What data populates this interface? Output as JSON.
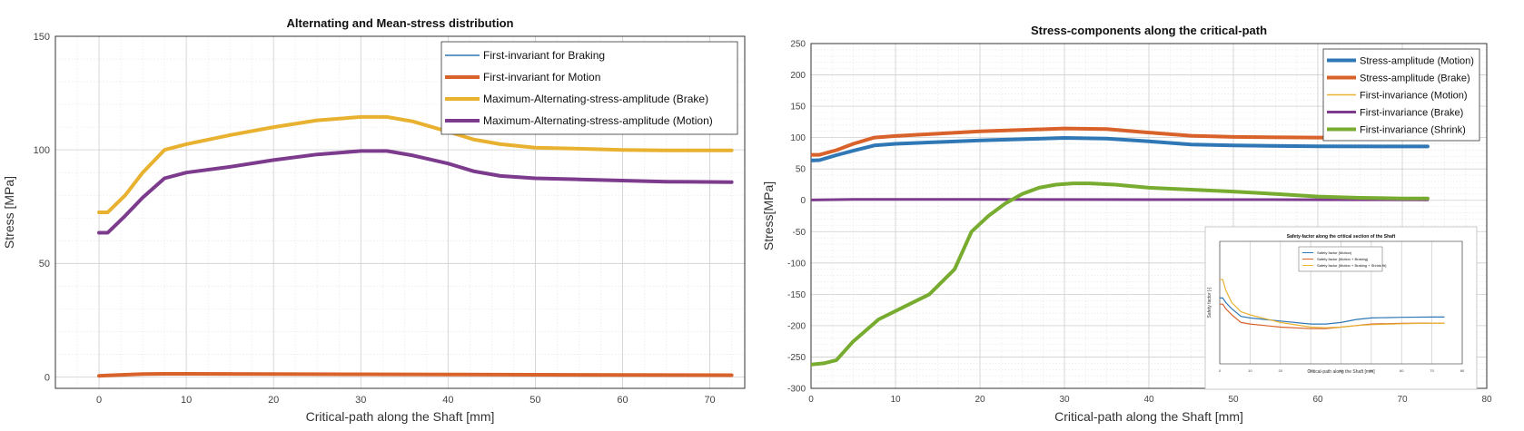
{
  "chart_data": [
    {
      "type": "line",
      "title": "Alternating and Mean-stress distribution",
      "xlabel": "Critical-path along the Shaft [mm]",
      "ylabel": "Stress [MPa]",
      "xlim": [
        -5,
        74
      ],
      "ylim": [
        -5,
        150
      ],
      "xticks": [
        0,
        10,
        20,
        30,
        40,
        50,
        60,
        70
      ],
      "yticks": [
        0,
        50,
        100,
        150
      ],
      "grid": true,
      "minor_grid": true,
      "legend_position": "top-right",
      "series": [
        {
          "name": "First-invariant for Braking",
          "color": "#2f77b5",
          "width": 1.5,
          "x": [
            0,
            1,
            3,
            5,
            7.5,
            10,
            20,
            30,
            40,
            50,
            60,
            72.5
          ],
          "y": [
            0.5,
            0.7,
            1.0,
            1.3,
            1.4,
            1.4,
            1.3,
            1.2,
            1.1,
            1.0,
            0.9,
            0.8
          ]
        },
        {
          "name": "First-invariant for Motion",
          "color": "#d9622b",
          "width": 4,
          "x": [
            0,
            1,
            3,
            5,
            7.5,
            10,
            20,
            30,
            40,
            50,
            60,
            72.5
          ],
          "y": [
            0.5,
            0.7,
            1.0,
            1.3,
            1.4,
            1.4,
            1.3,
            1.2,
            1.1,
            1.0,
            0.9,
            0.8
          ]
        },
        {
          "name": "Maximum-Alternating-stress-amplitude (Brake)",
          "color": "#e8b130",
          "width": 4,
          "x": [
            0,
            1,
            3,
            5,
            7.5,
            10,
            15,
            20,
            25,
            30,
            33,
            36,
            40,
            43,
            46,
            50,
            55,
            60,
            65,
            72.5
          ],
          "y": [
            72.5,
            72.5,
            80,
            90,
            100,
            102.5,
            106.5,
            110,
            113,
            114.5,
            114.5,
            112.5,
            108,
            104.5,
            102.5,
            101,
            100.5,
            100,
            99.8,
            99.8
          ]
        },
        {
          "name": "Maximum-Alternating-stress-amplitude (Motion)",
          "color": "#7d3b8e",
          "width": 4,
          "x": [
            0,
            1,
            3,
            5,
            7.5,
            10,
            15,
            20,
            25,
            30,
            33,
            36,
            40,
            43,
            46,
            50,
            55,
            60,
            65,
            72.5
          ],
          "y": [
            63.5,
            63.5,
            71,
            79,
            87.5,
            90,
            92.5,
            95.5,
            98,
            99.5,
            99.5,
            97.5,
            94,
            90.5,
            88.5,
            87.5,
            87,
            86.5,
            86,
            85.8
          ]
        }
      ]
    },
    {
      "type": "line",
      "title": "Stress-components along the critical-path",
      "xlabel": "Critical-path along the Shaft  [mm]",
      "ylabel": "Stress[MPa]",
      "xlim": [
        0,
        80
      ],
      "ylim": [
        -300,
        250
      ],
      "xticks": [
        0,
        10,
        20,
        30,
        40,
        50,
        60,
        70,
        80
      ],
      "yticks": [
        -300,
        -250,
        -200,
        -150,
        -100,
        -50,
        0,
        50,
        100,
        150,
        200,
        250
      ],
      "grid": true,
      "minor_grid": true,
      "legend_position": "top-right",
      "series": [
        {
          "name": "Stress-amplitude (Motion)",
          "color": "#2f77b5",
          "width": 4,
          "x": [
            0,
            1,
            3,
            5,
            7.5,
            10,
            20,
            30,
            35,
            40,
            45,
            50,
            60,
            73
          ],
          "y": [
            63.5,
            64,
            72,
            79,
            87.5,
            90,
            95.5,
            99.5,
            98.5,
            94,
            89,
            87.5,
            86,
            85.8
          ]
        },
        {
          "name": "Stress-amplitude (Brake)",
          "color": "#d9622b",
          "width": 4,
          "x": [
            0,
            1,
            3,
            5,
            7.5,
            10,
            20,
            30,
            35,
            40,
            45,
            50,
            60,
            73
          ],
          "y": [
            72.5,
            72.5,
            80,
            90,
            100,
            102.5,
            110,
            114.5,
            113.5,
            108,
            103,
            101,
            100,
            99.8
          ]
        },
        {
          "name": "First-invariance (Motion)",
          "color": "#e8b130",
          "width": 1.5,
          "x": [
            0,
            5,
            10,
            20,
            30,
            40,
            50,
            60,
            73
          ],
          "y": [
            0.5,
            1.3,
            1.4,
            1.3,
            1.2,
            1.1,
            1.0,
            0.9,
            0.8
          ]
        },
        {
          "name": "First-invariance (Brake)",
          "color": "#7d3b8e",
          "width": 3,
          "x": [
            0,
            5,
            10,
            20,
            30,
            40,
            50,
            60,
            73
          ],
          "y": [
            0.5,
            1.3,
            1.4,
            1.3,
            1.2,
            1.1,
            1.0,
            0.9,
            0.8
          ]
        },
        {
          "name": "First-invariance (Shrink)",
          "color": "#77ac30",
          "width": 4,
          "x": [
            0,
            1.5,
            3,
            5,
            8,
            11,
            14,
            17,
            19,
            21,
            23,
            25,
            27,
            29,
            31,
            33,
            36,
            40,
            45,
            50,
            55,
            60,
            65,
            70,
            73
          ],
          "y": [
            -262,
            -260,
            -255,
            -225,
            -190,
            -170,
            -150,
            -110,
            -50,
            -25,
            -5,
            10,
            20,
            25,
            27,
            27,
            25,
            20,
            17,
            14,
            10,
            6,
            4,
            3,
            3
          ]
        }
      ]
    },
    {
      "type": "line",
      "title": "Safety-factor along the critical section of the Shaft",
      "xlabel": "Critical-path along the Shaft [mm]",
      "ylabel": "Safety factor [-]",
      "xlim": [
        0,
        80
      ],
      "ylim": [
        0,
        4
      ],
      "xticks": [
        0,
        10,
        20,
        30,
        40,
        50,
        60,
        70,
        80
      ],
      "grid": true,
      "legend_position": "top-center",
      "series": [
        {
          "name": "Safety factor (Motion)",
          "color": "#2f77b5",
          "width": 1.2,
          "x": [
            0,
            1,
            2,
            4,
            7,
            10,
            20,
            30,
            35,
            40,
            45,
            50,
            60,
            70,
            74
          ],
          "y": [
            2.15,
            2.15,
            2.0,
            1.8,
            1.55,
            1.5,
            1.4,
            1.3,
            1.3,
            1.35,
            1.45,
            1.5,
            1.52,
            1.53,
            1.53
          ]
        },
        {
          "name": "Safety factor (Motion + Braking)",
          "color": "#d9622b",
          "width": 1.2,
          "x": [
            0,
            1,
            2,
            4,
            7,
            10,
            20,
            30,
            35,
            40,
            45,
            50,
            60,
            70,
            74
          ],
          "y": [
            1.95,
            1.95,
            1.8,
            1.6,
            1.35,
            1.3,
            1.2,
            1.15,
            1.15,
            1.2,
            1.25,
            1.3,
            1.32,
            1.33,
            1.33
          ]
        },
        {
          "name": "Safety factor (Motion + Braking + Shrink fit)",
          "color": "#e8b130",
          "width": 1.2,
          "x": [
            0,
            1,
            2,
            4,
            7,
            10,
            20,
            30,
            35,
            40,
            45,
            50,
            60,
            70,
            74
          ],
          "y": [
            2.75,
            2.75,
            2.4,
            2.0,
            1.7,
            1.6,
            1.35,
            1.2,
            1.18,
            1.2,
            1.25,
            1.28,
            1.31,
            1.33,
            1.33
          ]
        }
      ]
    }
  ]
}
